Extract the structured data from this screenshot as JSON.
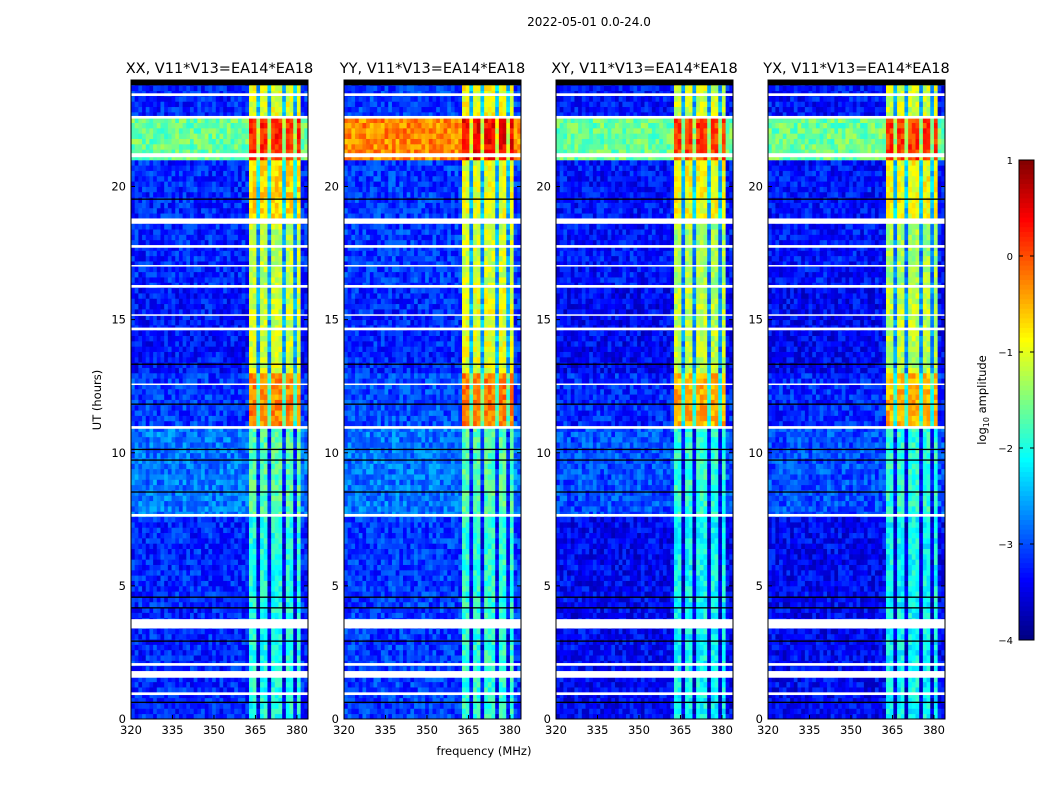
{
  "chart_data": {
    "type": "heatmap",
    "suptitle": "2022-05-01 0.0-24.0",
    "xlabel": "frequency (MHz)",
    "ylabel": "UT (hours)",
    "xlim": [
      320,
      384
    ],
    "ylim": [
      0,
      24
    ],
    "xticks": [
      "320",
      "335",
      "350",
      "365",
      "380"
    ],
    "yticks": [
      "0",
      "5",
      "10",
      "15",
      "20"
    ],
    "colorbar": {
      "label": "log10 amplitude",
      "label_main": "log",
      "label_sub": "10",
      "label_rest": " amplitude",
      "range": [
        -4,
        1
      ],
      "ticks": [
        "1",
        "0",
        "−1",
        "−2",
        "−3",
        "−4"
      ],
      "colormap": "jet"
    },
    "panels": [
      {
        "title": "XX, V11*V13=EA14*EA18"
      },
      {
        "title": "YY, V11*V13=EA14*EA18"
      },
      {
        "title": "XY, V11*V13=EA14*EA18"
      },
      {
        "title": "YX, V11*V13=EA14*EA18"
      }
    ],
    "band_mhz": [
      363,
      381
    ],
    "band_gaps_mhz": [
      366,
      370,
      375,
      379
    ],
    "time_segments": [
      {
        "start": 0,
        "end": 7.6,
        "background": [
          -3.2,
          -3.1,
          -3.4,
          -3.4
        ],
        "band": [
          -2.0,
          -1.9,
          -2.1,
          -2.1
        ]
      },
      {
        "start": 7.6,
        "end": 11.0,
        "background": [
          -2.8,
          -2.8,
          -3.0,
          -3.0
        ],
        "band": [
          -1.7,
          -1.7,
          -1.9,
          -1.9
        ]
      },
      {
        "start": 11.0,
        "end": 13.0,
        "background": [
          -3.1,
          -3.0,
          -3.2,
          -3.2
        ],
        "band": [
          -0.3,
          -0.2,
          -0.5,
          -0.5
        ]
      },
      {
        "start": 13.0,
        "end": 16.2,
        "background": [
          -3.3,
          -3.2,
          -3.4,
          -3.4
        ],
        "band": [
          -1.1,
          -1.0,
          -1.2,
          -1.2
        ]
      },
      {
        "start": 16.2,
        "end": 18.7,
        "background": [
          -3.2,
          -3.1,
          -3.3,
          -3.3
        ],
        "band": [
          -1.2,
          -1.1,
          -1.3,
          -1.3
        ]
      },
      {
        "start": 18.7,
        "end": 21.0,
        "background": [
          -3.2,
          -3.1,
          -3.3,
          -3.3
        ],
        "band": [
          -0.7,
          -1.0,
          -0.9,
          -0.9
        ]
      },
      {
        "start": 21.0,
        "end": 22.6,
        "background": [
          -1.6,
          -0.3,
          -1.6,
          -1.6
        ],
        "band": [
          0.2,
          0.4,
          0.1,
          0.1
        ]
      },
      {
        "start": 22.6,
        "end": 24.0,
        "background": [
          -3.2,
          -3.1,
          -3.3,
          -3.3
        ],
        "band": [
          -1.0,
          -0.9,
          -1.1,
          -1.1
        ]
      }
    ],
    "flagged_hours_white": [
      [
        0.9,
        1.0
      ],
      [
        1.55,
        1.8
      ],
      [
        2.0,
        2.1
      ],
      [
        3.4,
        3.75
      ],
      [
        7.6,
        7.7
      ],
      [
        10.9,
        11.0
      ],
      [
        12.55,
        12.6
      ],
      [
        14.6,
        14.7
      ],
      [
        15.15,
        15.2
      ],
      [
        16.2,
        16.3
      ],
      [
        17.0,
        17.05
      ],
      [
        17.7,
        17.8
      ],
      [
        18.6,
        18.8
      ],
      [
        21.1,
        21.25
      ],
      [
        22.55,
        22.65
      ],
      [
        23.4,
        23.5
      ]
    ],
    "flagged_hours_black": [
      [
        0.6,
        0.65
      ],
      [
        2.9,
        2.95
      ],
      [
        4.15,
        4.2
      ],
      [
        4.55,
        4.6
      ],
      [
        8.5,
        8.55
      ],
      [
        9.7,
        9.75
      ],
      [
        10.1,
        10.15
      ],
      [
        11.8,
        11.85
      ],
      [
        13.3,
        13.35
      ],
      [
        19.5,
        19.55
      ],
      [
        23.8,
        24.0
      ]
    ]
  }
}
